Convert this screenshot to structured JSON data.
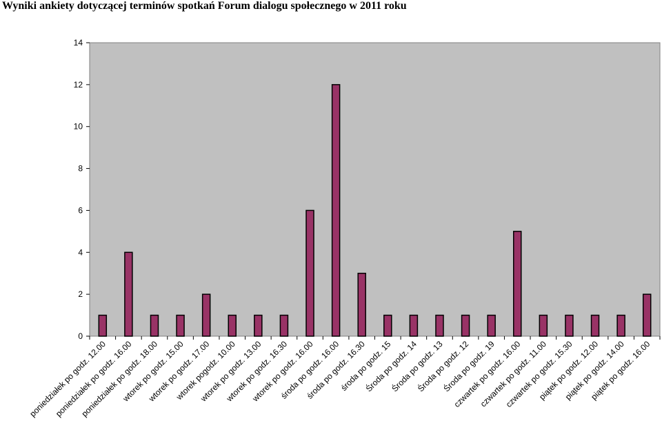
{
  "chart_data": {
    "type": "bar",
    "title": "Wyniki ankiety dotyczącej terminów spotkań Forum dialogu społecznego w 2011 roku",
    "xlabel": "",
    "ylabel": "",
    "ylim": [
      0,
      14
    ],
    "yticks": [
      0,
      2,
      4,
      6,
      8,
      10,
      12,
      14
    ],
    "grid": false,
    "legend": "none",
    "categories": [
      "poniedziałek po godz. 12.00",
      "poniedziałek po godz. 16.00",
      "poniedziałek po godz. 18.00",
      "wtorek po godz. 15.00",
      "wtorek po godz. 17.00",
      "wtorek pogodz. 10.00",
      "wtorek po godz. 13.00",
      "wtorek po godz. 16.30",
      "wtorek po godz. 16.00",
      "środa po godz. 16.00",
      "środa po godz. 16.30",
      "środa po godz. 15",
      "Środa po godz. 14",
      "Środa po godz. 13",
      "Środa po godz. 12",
      "Środa po godz. 19",
      "czwartek po godz. 16.00",
      "czwartek po godz. 11.00",
      "czwartek po godz. 15.30",
      "piątek po godz. 12.00",
      "piątek po godz. 14.00",
      "piątek po godz. 16.00"
    ],
    "values": [
      1,
      4,
      1,
      1,
      2,
      1,
      1,
      1,
      6,
      12,
      3,
      1,
      1,
      1,
      1,
      1,
      5,
      1,
      1,
      1,
      1,
      2
    ],
    "colors": {
      "bar_fill": "#993366",
      "bar_stroke": "#000000",
      "plot_background": "#c0c0c0",
      "axis": "#808080"
    }
  }
}
